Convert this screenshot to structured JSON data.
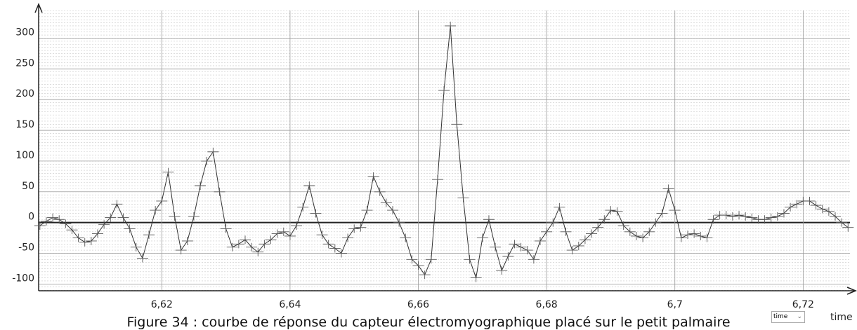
{
  "chart_data": {
    "type": "line",
    "x_label": "time",
    "selector_value": "time",
    "caption": "Figure 34 : courbe de réponse du capteur électromyographique placé sur le petit palmaire",
    "x": [
      6.601,
      6.602,
      6.603,
      6.604,
      6.605,
      6.606,
      6.607,
      6.608,
      6.609,
      6.61,
      6.611,
      6.612,
      6.613,
      6.614,
      6.615,
      6.616,
      6.617,
      6.618,
      6.619,
      6.62,
      6.621,
      6.622,
      6.623,
      6.624,
      6.625,
      6.626,
      6.627,
      6.628,
      6.629,
      6.63,
      6.631,
      6.632,
      6.633,
      6.634,
      6.635,
      6.636,
      6.637,
      6.638,
      6.639,
      6.64,
      6.641,
      6.642,
      6.643,
      6.644,
      6.645,
      6.646,
      6.647,
      6.648,
      6.649,
      6.65,
      6.651,
      6.652,
      6.653,
      6.654,
      6.655,
      6.656,
      6.657,
      6.658,
      6.659,
      6.66,
      6.661,
      6.662,
      6.663,
      6.664,
      6.665,
      6.666,
      6.667,
      6.668,
      6.669,
      6.67,
      6.671,
      6.672,
      6.673,
      6.674,
      6.675,
      6.676,
      6.677,
      6.678,
      6.679,
      6.68,
      6.681,
      6.682,
      6.683,
      6.684,
      6.685,
      6.686,
      6.687,
      6.688,
      6.689,
      6.69,
      6.691,
      6.692,
      6.693,
      6.694,
      6.695,
      6.696,
      6.697,
      6.698,
      6.699,
      6.7,
      6.701,
      6.702,
      6.703,
      6.704,
      6.705,
      6.706,
      6.707,
      6.708,
      6.709,
      6.71,
      6.711,
      6.712,
      6.713,
      6.714,
      6.715,
      6.716,
      6.717,
      6.718,
      6.719,
      6.72,
      6.721,
      6.722,
      6.723,
      6.724,
      6.725,
      6.726,
      6.727
    ],
    "series": [
      {
        "color": "#333333",
        "marker_color": "#555555",
        "values": [
          -5,
          2,
          8,
          5,
          -2,
          -12,
          -25,
          -32,
          -30,
          -18,
          -3,
          8,
          30,
          8,
          -10,
          -40,
          -58,
          -20,
          20,
          35,
          82,
          10,
          -45,
          -30,
          10,
          60,
          100,
          115,
          50,
          -10,
          -40,
          -35,
          -28,
          -40,
          -48,
          -35,
          -28,
          -18,
          -15,
          -22,
          -5,
          25,
          60,
          15,
          -20,
          -35,
          -42,
          -50,
          -25,
          -10,
          -8,
          20,
          75,
          50,
          32,
          20,
          0,
          -25,
          -60,
          -70,
          -85,
          -60,
          70,
          215,
          320,
          160,
          40,
          -60,
          -90,
          -25,
          5,
          -40,
          -78,
          -55,
          -35,
          -40,
          -45,
          -60,
          -30,
          -15,
          0,
          25,
          -15,
          -45,
          -38,
          -28,
          -18,
          -8,
          5,
          20,
          18,
          -5,
          -15,
          -22,
          -25,
          -15,
          0,
          15,
          55,
          20,
          -25,
          -20,
          -18,
          -22,
          -25,
          5,
          12,
          12,
          10,
          12,
          10,
          8,
          5,
          5,
          8,
          10,
          15,
          25,
          30,
          35,
          35,
          28,
          22,
          18,
          10,
          0,
          -8
        ]
      }
    ],
    "xlim": [
      6.6008,
      6.7273
    ],
    "xticks": [
      {
        "value": 6.62,
        "label": "6,62"
      },
      {
        "value": 6.64,
        "label": "6,64"
      },
      {
        "value": 6.66,
        "label": "6,66"
      },
      {
        "value": 6.68,
        "label": "6,68"
      },
      {
        "value": 6.7,
        "label": "6,7"
      },
      {
        "value": 6.72,
        "label": "6,72"
      }
    ],
    "ylim": [
      -111,
      345
    ],
    "yticks": [
      -100,
      -50,
      0,
      50,
      100,
      150,
      200,
      250,
      300
    ],
    "grid": true,
    "minor_grid": true
  }
}
